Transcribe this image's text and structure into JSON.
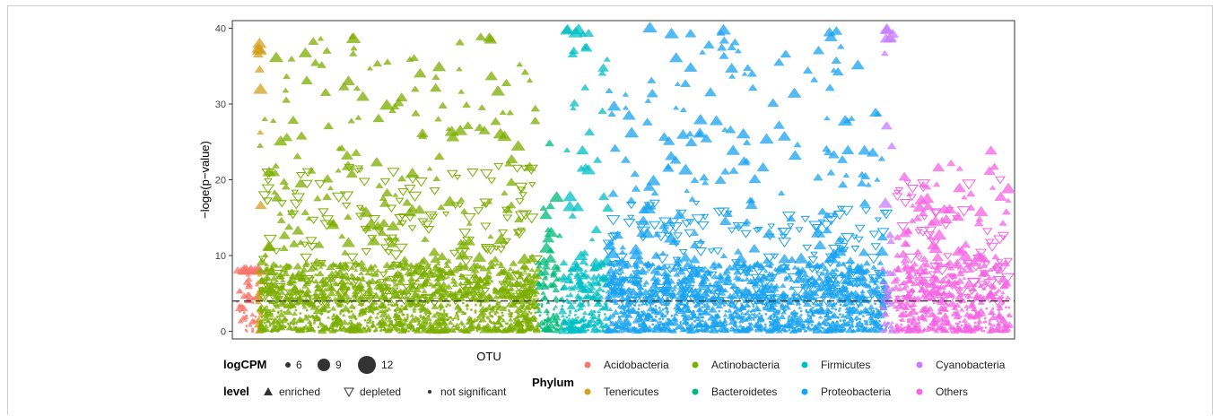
{
  "chart_data": {
    "type": "scatter",
    "title": "",
    "xlabel": "OTU",
    "ylabel": "−loge(p−value)",
    "ylim": [
      -1,
      41
    ],
    "yticks": [
      0,
      10,
      20,
      30,
      40
    ],
    "threshold_y": 4,
    "grid": false,
    "legend_position": "bottom",
    "logcpm_legend": {
      "title": "logCPM",
      "sizes": [
        6,
        9,
        12
      ]
    },
    "level_legend": {
      "title": "level",
      "items": [
        {
          "label": "enriched",
          "shape": "triangle-up"
        },
        {
          "label": "depleted",
          "shape": "triangle-down-open"
        },
        {
          "label": "not significant",
          "shape": "dot"
        }
      ]
    },
    "phylum_legend": {
      "title": "Phylum",
      "items": [
        {
          "label": "Acidobacteria",
          "color": "#F8766D"
        },
        {
          "label": "Actinobacteria",
          "color": "#7CAE00"
        },
        {
          "label": "Firmicutes",
          "color": "#00BFC4"
        },
        {
          "label": "Cyanobacteria",
          "color": "#C77CFF"
        },
        {
          "label": "Tenericutes",
          "color": "#D4A020"
        },
        {
          "label": "Bacteroidetes",
          "color": "#00BA78"
        },
        {
          "label": "Proteobacteria",
          "color": "#1AA3F0"
        },
        {
          "label": "Others",
          "color": "#F564E3"
        }
      ]
    },
    "series": [
      {
        "name": "Acidobacteria",
        "x_range": [
          0,
          3
        ],
        "max_enriched": 8,
        "max_depleted": 0,
        "density": 0.3
      },
      {
        "name": "Tenericutes",
        "x_range": [
          2.7,
          3.2
        ],
        "max_enriched": 38,
        "max_depleted": 0,
        "density": 0.15
      },
      {
        "name": "Actinobacteria",
        "x_range": [
          3,
          39
        ],
        "max_enriched": 39,
        "max_depleted": 22,
        "density": 1.0
      },
      {
        "name": "Bacteroidetes",
        "x_range": [
          39,
          42
        ],
        "max_enriched": 25,
        "max_depleted": 0,
        "density": 0.5
      },
      {
        "name": "Firmicutes",
        "x_range": [
          42,
          48
        ],
        "max_enriched": 40,
        "max_depleted": 0,
        "density": 0.9
      },
      {
        "name": "Proteobacteria",
        "x_range": [
          48,
          84
        ],
        "max_enriched": 40,
        "max_depleted": 17,
        "density": 1.0
      },
      {
        "name": "Cyanobacteria",
        "x_range": [
          83.5,
          85
        ],
        "max_enriched": 40,
        "max_depleted": 0,
        "density": 0.3
      },
      {
        "name": "Others",
        "x_range": [
          85,
          100
        ],
        "max_enriched": 24,
        "max_depleted": 21,
        "density": 0.8
      }
    ]
  }
}
